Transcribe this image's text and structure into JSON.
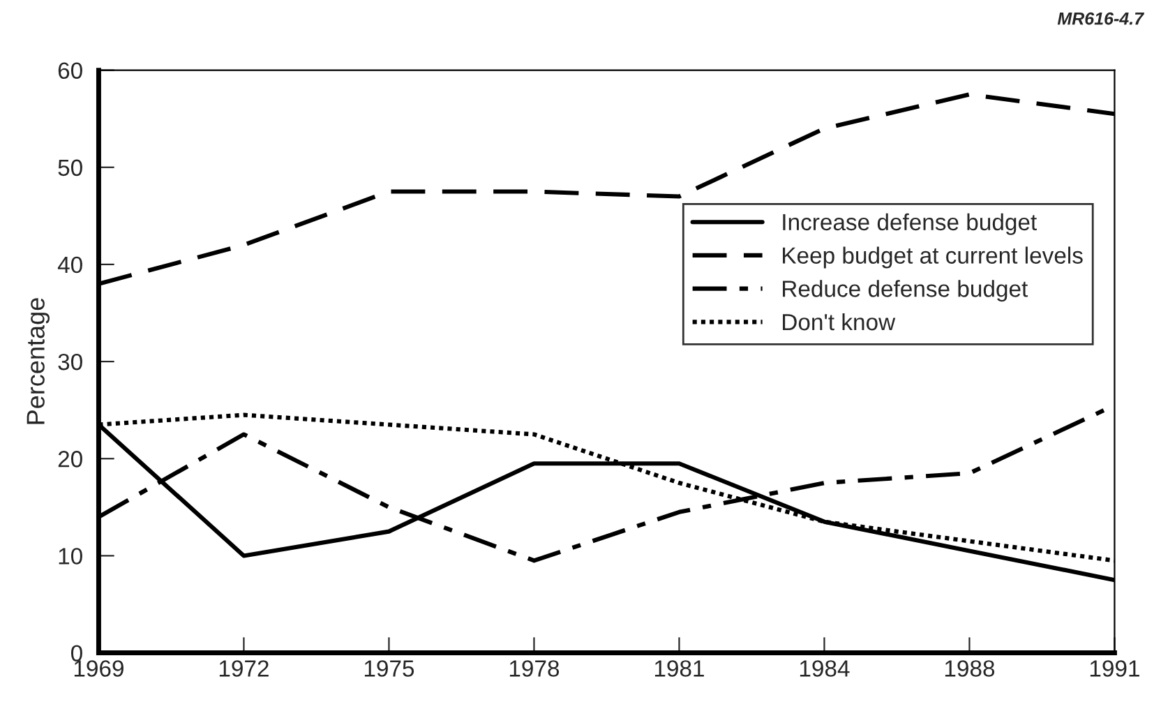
{
  "chart_data": {
    "type": "line",
    "ylabel": "Percentage",
    "categories": [
      "1969",
      "1972",
      "1975",
      "1978",
      "1981",
      "1984",
      "1988",
      "1991"
    ],
    "ylim": [
      0,
      60
    ],
    "yticks": [
      0,
      10,
      20,
      30,
      40,
      50,
      60
    ],
    "grid": false,
    "legend": "right",
    "annotations": [
      "MR616-4.7"
    ],
    "series": [
      {
        "name": "Increase defense budget",
        "color": "#000000",
        "line_style": "solid",
        "values": [
          23.5,
          10,
          12.5,
          19.5,
          19.5,
          13.5,
          10.5,
          7.5
        ]
      },
      {
        "name": "Keep budget at current levels",
        "color": "#000000",
        "line_style": "dashed",
        "values": [
          38,
          42,
          47.5,
          47.5,
          47,
          54,
          57.5,
          55.5
        ]
      },
      {
        "name": "Reduce defense budget",
        "color": "#000000",
        "line_style": "dashdot",
        "values": [
          14,
          22.5,
          15,
          9.5,
          14.5,
          17.5,
          18.5,
          25.5
        ]
      },
      {
        "name": "Don't know",
        "color": "#000000",
        "line_style": "dotted",
        "values": [
          23.5,
          24.5,
          23.5,
          22.5,
          17.5,
          13.5,
          11.5,
          9.5
        ]
      }
    ]
  }
}
